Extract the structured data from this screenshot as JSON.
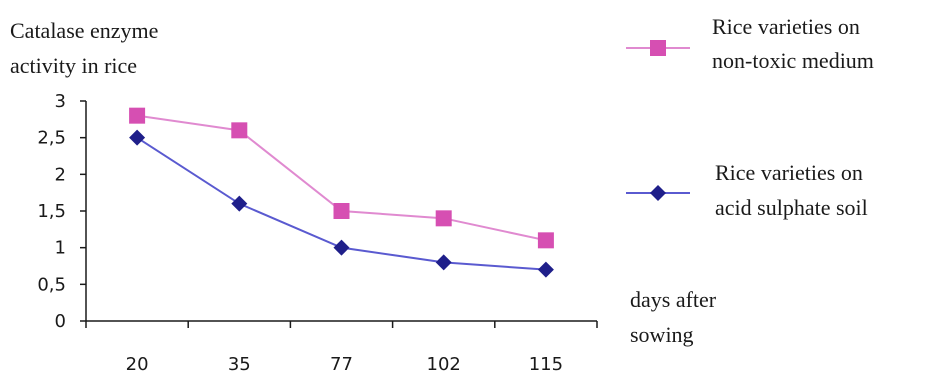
{
  "chart_data": {
    "type": "line",
    "ylabel": [
      "Catalase enzyme",
      "activity in rice"
    ],
    "xlabel": [
      "days after",
      "sowing"
    ],
    "categories": [
      "20",
      "35",
      "77",
      "102",
      "115"
    ],
    "yticks": [
      "0",
      "0,5",
      "1",
      "1,5",
      "2",
      "2,5",
      "3"
    ],
    "ylim": [
      0,
      3
    ],
    "grid": false,
    "legend_position": "right",
    "series": [
      {
        "name": [
          "Rice varieties on",
          "non-toxic medium"
        ],
        "values": [
          2.8,
          2.6,
          1.5,
          1.4,
          1.1
        ],
        "color": "#d64fb2",
        "line_color": "#e08ad0",
        "marker": "square"
      },
      {
        "name": [
          "Rice varieties on",
          "acid sulphate soil"
        ],
        "values": [
          2.5,
          1.6,
          1.0,
          0.8,
          0.7
        ],
        "color": "#1f1f8a",
        "line_color": "#5a5ad0",
        "marker": "diamond"
      }
    ]
  }
}
